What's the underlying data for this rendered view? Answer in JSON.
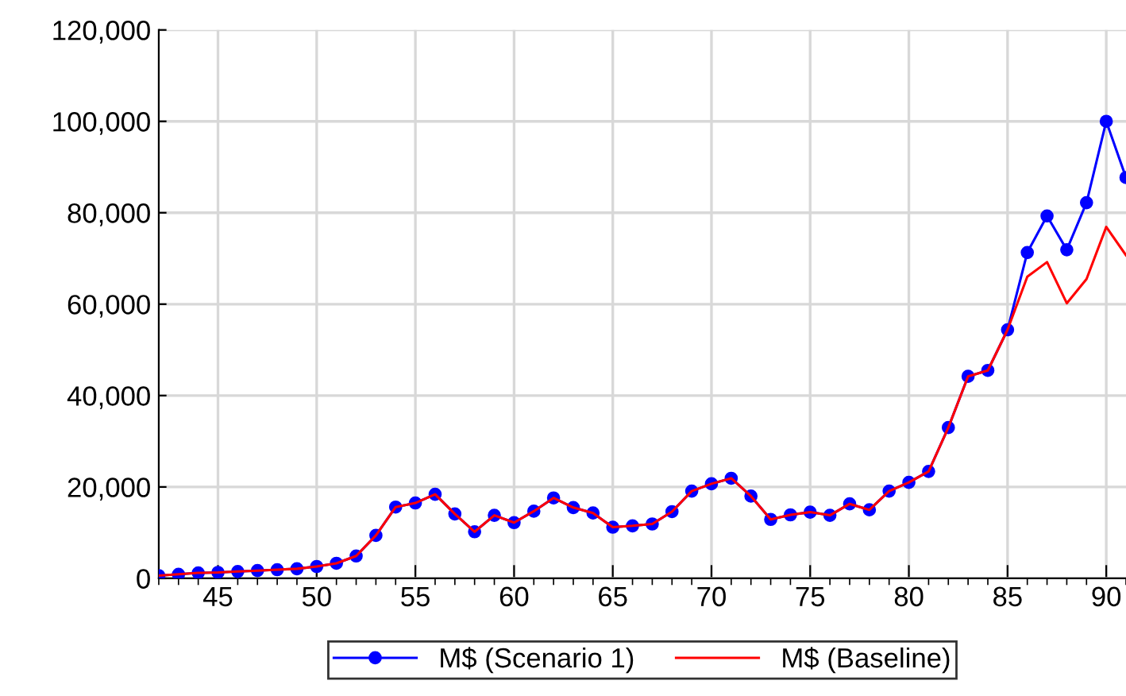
{
  "chart_data": {
    "type": "line",
    "x": [
      42,
      43,
      44,
      45,
      46,
      47,
      48,
      49,
      50,
      51,
      52,
      53,
      54,
      55,
      56,
      57,
      58,
      59,
      60,
      61,
      62,
      63,
      64,
      65,
      66,
      67,
      68,
      69,
      70,
      71,
      72,
      73,
      74,
      75,
      76,
      77,
      78,
      79,
      80,
      81,
      82,
      83,
      84,
      85,
      86,
      87,
      88,
      89,
      90,
      91
    ],
    "series": [
      {
        "name": "M$ (Scenario 1)",
        "color": "#0000ff",
        "marker": "circle",
        "values": [
          600,
          900,
          1200,
          1300,
          1500,
          1700,
          1900,
          2100,
          2600,
          3300,
          4900,
          9400,
          15600,
          16500,
          18400,
          14100,
          10200,
          13800,
          12200,
          14700,
          17600,
          15500,
          14300,
          11200,
          11500,
          11900,
          14600,
          19100,
          20700,
          21900,
          18000,
          12900,
          13900,
          14500,
          13800,
          16300,
          15000,
          19100,
          21000,
          23400,
          33000,
          44200,
          45500,
          54400,
          71300,
          79300,
          71900,
          82200,
          100000,
          87700
        ]
      },
      {
        "name": "M$ (Baseline)",
        "color": "#ff0000",
        "marker": "none",
        "values": [
          600,
          900,
          1200,
          1300,
          1500,
          1700,
          1900,
          2100,
          2600,
          3300,
          4900,
          9400,
          15600,
          16500,
          18400,
          14100,
          10200,
          13800,
          12200,
          14700,
          17600,
          15500,
          14300,
          11200,
          11500,
          11900,
          14600,
          19100,
          20700,
          21900,
          18000,
          12900,
          13900,
          14500,
          13800,
          16300,
          15000,
          19100,
          21000,
          23400,
          33000,
          44200,
          45500,
          54400,
          66000,
          69200,
          60200,
          65500,
          76900,
          70700
        ]
      }
    ],
    "xlim": [
      42,
      91
    ],
    "xticks": [
      45,
      50,
      55,
      60,
      65,
      70,
      75,
      80,
      85,
      90
    ],
    "ylim": [
      0,
      120000
    ],
    "yticks": [
      {
        "value": 0,
        "label": "0"
      },
      {
        "value": 20000,
        "label": "20,000"
      },
      {
        "value": 40000,
        "label": "40,000"
      },
      {
        "value": 60000,
        "label": "60,000"
      },
      {
        "value": 80000,
        "label": "80,000"
      },
      {
        "value": 100000,
        "label": "100,000"
      },
      {
        "value": 120000,
        "label": "120,000"
      }
    ],
    "grid": true,
    "legend": "bottom",
    "line_style": "solid"
  }
}
